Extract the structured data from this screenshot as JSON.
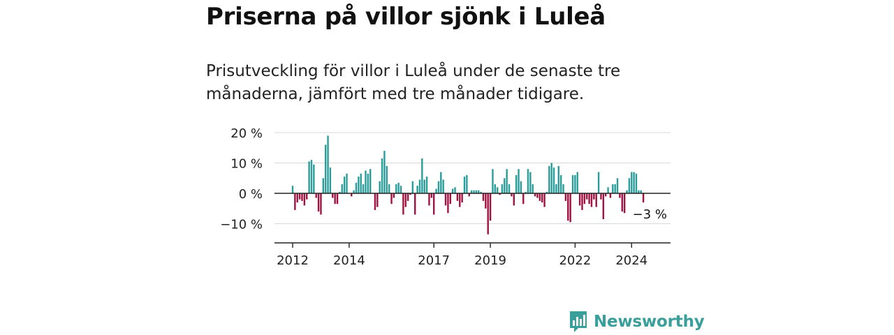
{
  "header": {
    "title": "Priserna på villor sjönk i Luleå",
    "subtitle": "Prisutveckling för villor i Luleå under de senaste tre månaderna, jämfört med tre månader tidigare."
  },
  "brand": {
    "name": "Newsworthy",
    "icon": "bar-chart-speech-bubble-icon",
    "color": "#3a9e9a"
  },
  "chart_data": {
    "type": "bar",
    "x_start": "2012-01",
    "x_end": "2024-10",
    "values": [
      2.5,
      -5.5,
      -3.0,
      -2.0,
      -2.5,
      -4.0,
      -2.0,
      10.5,
      11.0,
      9.5,
      -1.5,
      -6.0,
      -7.0,
      5.0,
      16.0,
      19.0,
      8.5,
      -1.5,
      -3.5,
      -3.5,
      0.5,
      3.0,
      5.5,
      6.5,
      0.0,
      -1.0,
      1.0,
      3.5,
      5.5,
      6.5,
      3.0,
      7.5,
      6.5,
      8.0,
      0.0,
      -5.5,
      -4.5,
      4.0,
      11.5,
      14.0,
      9.0,
      3.0,
      -3.5,
      -1.5,
      3.0,
      3.5,
      2.5,
      -7.0,
      -4.5,
      -2.5,
      -0.5,
      4.0,
      -7.0,
      2.5,
      4.5,
      11.5,
      4.5,
      5.5,
      -4.0,
      -1.5,
      -7.0,
      1.5,
      4.0,
      7.0,
      4.5,
      -4.0,
      -6.5,
      -3.5,
      1.5,
      2.0,
      -2.5,
      -4.5,
      -3.0,
      5.5,
      6.0,
      -1.0,
      1.0,
      1.0,
      1.0,
      1.0,
      0.5,
      -2.5,
      -5.0,
      -13.5,
      -9.0,
      8.0,
      3.0,
      2.0,
      -0.5,
      3.0,
      5.0,
      8.0,
      3.0,
      -1.0,
      -4.0,
      6.0,
      8.0,
      4.0,
      -3.5,
      0.5,
      8.0,
      7.0,
      3.0,
      -1.0,
      -1.5,
      -2.5,
      -3.0,
      -4.5,
      0.5,
      9.0,
      10.0,
      8.5,
      3.0,
      9.0,
      6.0,
      3.0,
      -2.5,
      -9.0,
      -9.5,
      6.0,
      6.0,
      7.0,
      -4.0,
      -5.5,
      -3.5,
      -2.0,
      -3.5,
      -4.5,
      -2.0,
      -4.5,
      7.0,
      -2.0,
      -8.5,
      -1.0,
      2.0,
      -1.5,
      3.0,
      3.0,
      5.0,
      -1.5,
      -6.0,
      -6.5,
      1.0,
      5.0,
      7.0,
      7.0,
      6.5,
      1.0,
      1.0,
      -3.0
    ],
    "positive_color": "#2a9d9a",
    "negative_color": "#a0123f",
    "x_ticks": [
      "2012",
      "2014",
      "2017",
      "2019",
      "2022",
      "2024"
    ],
    "y_ticks": [
      "20 %",
      "10 %",
      "0 %",
      "−10 %"
    ],
    "ylim": [
      -15,
      20
    ],
    "grid": true,
    "last_label": "−3 %"
  }
}
